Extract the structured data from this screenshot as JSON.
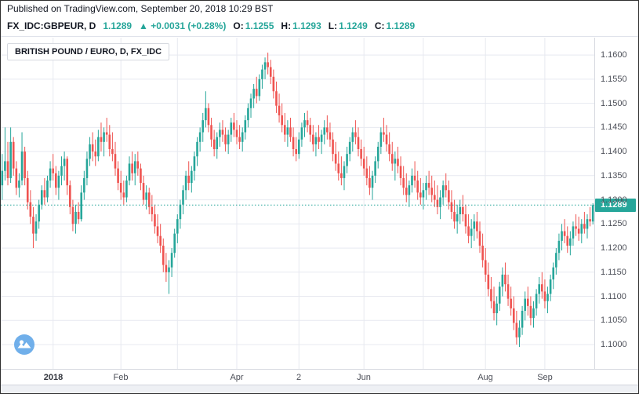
{
  "header": {
    "published_line": "Published on TradingView.com, September 20, 2018 10:29 BST",
    "symbol_line": {
      "symbol": "FX_IDC:GBPEUR, D",
      "last": "1.1289",
      "up_arrow": "▲",
      "change": "+0.0031 (+0.28%)",
      "o_label": "O:",
      "o": "1.1255",
      "h_label": "H:",
      "h": "1.1293",
      "l_label": "L:",
      "l": "1.1249",
      "c_label": "C:",
      "c": "1.1289"
    }
  },
  "legend": {
    "title": "BRITISH POUND / EURO, D, FX_IDC"
  },
  "price_scale": {
    "last_badge": "1.1289"
  },
  "colors": {
    "up": "#26a69a",
    "down": "#ef5350",
    "accent": "#26a69a",
    "grid": "#e7e9f0",
    "axis_text": "#4c4f58",
    "badge_bg": "#26a69a",
    "logo_blue": "#64a8e8"
  },
  "chart_data": {
    "type": "candlestick",
    "symbol": "FX_IDC:GBPEUR",
    "interval": "D",
    "title": "BRITISH POUND / EURO, D, FX_IDC",
    "ylim": [
      1.0948,
      1.1636
    ],
    "grid": true,
    "price_line": 1.1289,
    "y_ticks": [
      "1.1600",
      "1.1550",
      "1.1500",
      "1.1450",
      "1.1400",
      "1.1350",
      "1.1300",
      "1.1250",
      "1.1200",
      "1.1150",
      "1.1100",
      "1.1050",
      "1.1000"
    ],
    "x_ticks": [
      {
        "label": "2018",
        "index": 18
      },
      {
        "label": "Feb",
        "index": 42
      },
      {
        "label": "Apr",
        "index": 83
      },
      {
        "label": "2",
        "index": 105
      },
      {
        "label": "Jun",
        "index": 128
      },
      {
        "label": "Aug",
        "index": 171
      },
      {
        "label": "Sep",
        "index": 192
      }
    ],
    "month_gridline_indices": [
      18,
      42,
      62,
      83,
      105,
      128,
      149,
      171,
      192
    ],
    "candles": [
      [
        1.133,
        1.1395,
        1.13,
        1.136
      ],
      [
        1.136,
        1.145,
        1.134,
        1.138
      ],
      [
        1.138,
        1.142,
        1.133,
        1.1345
      ],
      [
        1.1345,
        1.145,
        1.1335,
        1.142
      ],
      [
        1.142,
        1.143,
        1.135,
        1.1365
      ],
      [
        1.1365,
        1.138,
        1.131,
        1.1325
      ],
      [
        1.1325,
        1.1355,
        1.1305,
        1.134
      ],
      [
        1.134,
        1.144,
        1.133,
        1.14
      ],
      [
        1.14,
        1.141,
        1.133,
        1.1345
      ],
      [
        1.1345,
        1.136,
        1.128,
        1.1295
      ],
      [
        1.1295,
        1.132,
        1.125,
        1.1265
      ],
      [
        1.1265,
        1.1285,
        1.12,
        1.123
      ],
      [
        1.123,
        1.127,
        1.1215,
        1.1255
      ],
      [
        1.1255,
        1.13,
        1.124,
        1.129
      ],
      [
        1.129,
        1.133,
        1.128,
        1.132
      ],
      [
        1.132,
        1.1345,
        1.129,
        1.1305
      ],
      [
        1.1305,
        1.135,
        1.1295,
        1.134
      ],
      [
        1.134,
        1.138,
        1.1325,
        1.1365
      ],
      [
        1.1365,
        1.1395,
        1.134,
        1.1355
      ],
      [
        1.1355,
        1.137,
        1.131,
        1.1325
      ],
      [
        1.1325,
        1.136,
        1.13,
        1.135
      ],
      [
        1.135,
        1.139,
        1.133,
        1.137
      ],
      [
        1.137,
        1.14,
        1.134,
        1.1385
      ],
      [
        1.1385,
        1.139,
        1.131,
        1.133
      ],
      [
        1.133,
        1.134,
        1.127,
        1.1285
      ],
      [
        1.1285,
        1.13,
        1.1235,
        1.125
      ],
      [
        1.125,
        1.129,
        1.123,
        1.1275
      ],
      [
        1.1275,
        1.1295,
        1.125,
        1.126
      ],
      [
        1.126,
        1.133,
        1.1255,
        1.1315
      ],
      [
        1.1315,
        1.136,
        1.13,
        1.1345
      ],
      [
        1.1345,
        1.14,
        1.133,
        1.1385
      ],
      [
        1.1385,
        1.143,
        1.137,
        1.1415
      ],
      [
        1.1415,
        1.144,
        1.138,
        1.14
      ],
      [
        1.14,
        1.1425,
        1.137,
        1.139
      ],
      [
        1.139,
        1.1445,
        1.138,
        1.143
      ],
      [
        1.143,
        1.146,
        1.14,
        1.142
      ],
      [
        1.142,
        1.145,
        1.139,
        1.144
      ],
      [
        1.144,
        1.147,
        1.142,
        1.1435
      ],
      [
        1.1435,
        1.1455,
        1.139,
        1.1405
      ],
      [
        1.1405,
        1.144,
        1.138,
        1.1395
      ],
      [
        1.1395,
        1.142,
        1.135,
        1.1365
      ],
      [
        1.1365,
        1.138,
        1.132,
        1.1335
      ],
      [
        1.1335,
        1.136,
        1.13,
        1.1315
      ],
      [
        1.1315,
        1.134,
        1.129,
        1.1305
      ],
      [
        1.1305,
        1.135,
        1.1295,
        1.134
      ],
      [
        1.134,
        1.139,
        1.133,
        1.1375
      ],
      [
        1.1375,
        1.14,
        1.134,
        1.1355
      ],
      [
        1.1355,
        1.1395,
        1.133,
        1.138
      ],
      [
        1.138,
        1.14,
        1.135,
        1.1365
      ],
      [
        1.1365,
        1.1375,
        1.132,
        1.1335
      ],
      [
        1.1335,
        1.135,
        1.129,
        1.13
      ],
      [
        1.13,
        1.133,
        1.128,
        1.1315
      ],
      [
        1.1315,
        1.1325,
        1.127,
        1.1285
      ],
      [
        1.1285,
        1.131,
        1.1255,
        1.127
      ],
      [
        1.127,
        1.129,
        1.123,
        1.1245
      ],
      [
        1.1245,
        1.127,
        1.121,
        1.1225
      ],
      [
        1.1225,
        1.125,
        1.119,
        1.1205
      ],
      [
        1.1205,
        1.122,
        1.115,
        1.1165
      ],
      [
        1.1165,
        1.119,
        1.113,
        1.115
      ],
      [
        1.115,
        1.1175,
        1.1105,
        1.116
      ],
      [
        1.116,
        1.12,
        1.114,
        1.119
      ],
      [
        1.119,
        1.124,
        1.118,
        1.123
      ],
      [
        1.123,
        1.127,
        1.121,
        1.126
      ],
      [
        1.126,
        1.13,
        1.124,
        1.129
      ],
      [
        1.129,
        1.133,
        1.127,
        1.132
      ],
      [
        1.132,
        1.136,
        1.13,
        1.135
      ],
      [
        1.135,
        1.138,
        1.132,
        1.1335
      ],
      [
        1.1335,
        1.137,
        1.1315,
        1.136
      ],
      [
        1.136,
        1.14,
        1.134,
        1.139
      ],
      [
        1.139,
        1.143,
        1.137,
        1.142
      ],
      [
        1.142,
        1.145,
        1.14,
        1.144
      ],
      [
        1.144,
        1.148,
        1.142,
        1.1465
      ],
      [
        1.1465,
        1.1525,
        1.145,
        1.149
      ],
      [
        1.149,
        1.15,
        1.144,
        1.1455
      ],
      [
        1.1455,
        1.147,
        1.141,
        1.1425
      ],
      [
        1.1425,
        1.1445,
        1.139,
        1.1405
      ],
      [
        1.1405,
        1.144,
        1.1385,
        1.143
      ],
      [
        1.143,
        1.146,
        1.141,
        1.1445
      ],
      [
        1.1445,
        1.1465,
        1.142,
        1.1435
      ],
      [
        1.1435,
        1.145,
        1.14,
        1.1415
      ],
      [
        1.1415,
        1.1445,
        1.1395,
        1.1435
      ],
      [
        1.1435,
        1.147,
        1.142,
        1.146
      ],
      [
        1.146,
        1.148,
        1.143,
        1.1445
      ],
      [
        1.1445,
        1.1465,
        1.1415,
        1.143
      ],
      [
        1.143,
        1.1455,
        1.1405,
        1.142
      ],
      [
        1.142,
        1.145,
        1.14,
        1.144
      ],
      [
        1.144,
        1.1475,
        1.1425,
        1.1465
      ],
      [
        1.1465,
        1.15,
        1.145,
        1.149
      ],
      [
        1.149,
        1.152,
        1.147,
        1.151
      ],
      [
        1.151,
        1.154,
        1.149,
        1.153
      ],
      [
        1.153,
        1.1555,
        1.15,
        1.1515
      ],
      [
        1.1515,
        1.156,
        1.1505,
        1.155
      ],
      [
        1.155,
        1.158,
        1.153,
        1.157
      ],
      [
        1.157,
        1.1595,
        1.155,
        1.1585
      ],
      [
        1.1585,
        1.1605,
        1.156,
        1.1575
      ],
      [
        1.1575,
        1.159,
        1.154,
        1.1555
      ],
      [
        1.1555,
        1.157,
        1.151,
        1.1525
      ],
      [
        1.1525,
        1.1545,
        1.148,
        1.1495
      ],
      [
        1.1495,
        1.152,
        1.146,
        1.1475
      ],
      [
        1.1475,
        1.15,
        1.144,
        1.1455
      ],
      [
        1.1455,
        1.148,
        1.142,
        1.1435
      ],
      [
        1.1435,
        1.1465,
        1.141,
        1.145
      ],
      [
        1.145,
        1.147,
        1.142,
        1.143
      ],
      [
        1.143,
        1.145,
        1.139,
        1.1405
      ],
      [
        1.1405,
        1.143,
        1.138,
        1.1395
      ],
      [
        1.1395,
        1.144,
        1.1385,
        1.1425
      ],
      [
        1.1425,
        1.146,
        1.141,
        1.145
      ],
      [
        1.145,
        1.148,
        1.143,
        1.1465
      ],
      [
        1.1465,
        1.1485,
        1.144,
        1.1455
      ],
      [
        1.1455,
        1.147,
        1.142,
        1.1435
      ],
      [
        1.1435,
        1.1455,
        1.14,
        1.1415
      ],
      [
        1.1415,
        1.144,
        1.139,
        1.143
      ],
      [
        1.143,
        1.1455,
        1.1405,
        1.142
      ],
      [
        1.142,
        1.1445,
        1.1395,
        1.1435
      ],
      [
        1.1435,
        1.1465,
        1.1415,
        1.145
      ],
      [
        1.145,
        1.1475,
        1.1425,
        1.144
      ],
      [
        1.144,
        1.146,
        1.141,
        1.1425
      ],
      [
        1.1425,
        1.144,
        1.138,
        1.1395
      ],
      [
        1.1395,
        1.142,
        1.136,
        1.1375
      ],
      [
        1.1375,
        1.14,
        1.134,
        1.1355
      ],
      [
        1.1355,
        1.139,
        1.133,
        1.1345
      ],
      [
        1.1345,
        1.138,
        1.132,
        1.137
      ],
      [
        1.137,
        1.141,
        1.1355,
        1.1395
      ],
      [
        1.1395,
        1.143,
        1.138,
        1.142
      ],
      [
        1.142,
        1.145,
        1.14,
        1.144
      ],
      [
        1.144,
        1.1465,
        1.1415,
        1.143
      ],
      [
        1.143,
        1.145,
        1.139,
        1.1405
      ],
      [
        1.1405,
        1.1425,
        1.137,
        1.1385
      ],
      [
        1.1385,
        1.141,
        1.135,
        1.1365
      ],
      [
        1.1365,
        1.139,
        1.133,
        1.1345
      ],
      [
        1.1345,
        1.137,
        1.131,
        1.1325
      ],
      [
        1.1325,
        1.136,
        1.13,
        1.135
      ],
      [
        1.135,
        1.139,
        1.1335,
        1.138
      ],
      [
        1.138,
        1.142,
        1.1365,
        1.141
      ],
      [
        1.141,
        1.145,
        1.1395,
        1.144
      ],
      [
        1.144,
        1.147,
        1.142,
        1.1435
      ],
      [
        1.1435,
        1.1455,
        1.14,
        1.1415
      ],
      [
        1.1415,
        1.144,
        1.138,
        1.1395
      ],
      [
        1.1395,
        1.142,
        1.136,
        1.1375
      ],
      [
        1.1375,
        1.14,
        1.134,
        1.1385
      ],
      [
        1.1385,
        1.141,
        1.1355,
        1.137
      ],
      [
        1.137,
        1.139,
        1.133,
        1.1345
      ],
      [
        1.1345,
        1.137,
        1.131,
        1.1325
      ],
      [
        1.1325,
        1.1355,
        1.1295,
        1.131
      ],
      [
        1.131,
        1.134,
        1.1285,
        1.133
      ],
      [
        1.133,
        1.1365,
        1.1315,
        1.135
      ],
      [
        1.135,
        1.138,
        1.1325,
        1.134
      ],
      [
        1.134,
        1.136,
        1.13,
        1.1315
      ],
      [
        1.1315,
        1.1345,
        1.129,
        1.1305
      ],
      [
        1.1305,
        1.1335,
        1.128,
        1.132
      ],
      [
        1.132,
        1.135,
        1.13,
        1.1335
      ],
      [
        1.1335,
        1.136,
        1.131,
        1.1325
      ],
      [
        1.1325,
        1.135,
        1.1295,
        1.131
      ],
      [
        1.131,
        1.134,
        1.1285,
        1.13
      ],
      [
        1.13,
        1.133,
        1.127,
        1.1285
      ],
      [
        1.1285,
        1.132,
        1.126,
        1.1305
      ],
      [
        1.1305,
        1.134,
        1.129,
        1.133
      ],
      [
        1.133,
        1.1355,
        1.1305,
        1.132
      ],
      [
        1.132,
        1.134,
        1.128,
        1.1295
      ],
      [
        1.1295,
        1.132,
        1.126,
        1.1275
      ],
      [
        1.1275,
        1.13,
        1.124,
        1.1255
      ],
      [
        1.1255,
        1.129,
        1.123,
        1.127
      ],
      [
        1.127,
        1.13,
        1.125,
        1.1285
      ],
      [
        1.1285,
        1.131,
        1.1255,
        1.127
      ],
      [
        1.127,
        1.129,
        1.123,
        1.1245
      ],
      [
        1.1245,
        1.127,
        1.121,
        1.1225
      ],
      [
        1.1225,
        1.126,
        1.12,
        1.124
      ],
      [
        1.124,
        1.127,
        1.1215,
        1.1255
      ],
      [
        1.1255,
        1.1275,
        1.122,
        1.1235
      ],
      [
        1.1235,
        1.1255,
        1.119,
        1.1205
      ],
      [
        1.1205,
        1.123,
        1.116,
        1.1175
      ],
      [
        1.1175,
        1.12,
        1.113,
        1.1145
      ],
      [
        1.1145,
        1.117,
        1.11,
        1.1115
      ],
      [
        1.1115,
        1.114,
        1.1075,
        1.109
      ],
      [
        1.109,
        1.112,
        1.105,
        1.1065
      ],
      [
        1.1065,
        1.11,
        1.104,
        1.1085
      ],
      [
        1.1085,
        1.113,
        1.107,
        1.112
      ],
      [
        1.112,
        1.116,
        1.11,
        1.1145
      ],
      [
        1.1145,
        1.117,
        1.111,
        1.1125
      ],
      [
        1.1125,
        1.1145,
        1.108,
        1.1095
      ],
      [
        1.1095,
        1.112,
        1.106,
        1.1075
      ],
      [
        1.1075,
        1.11,
        1.103,
        1.1045
      ],
      [
        1.1045,
        1.107,
        1.1,
        1.1015
      ],
      [
        1.1015,
        1.105,
        1.0995,
        1.1035
      ],
      [
        1.1035,
        1.108,
        1.102,
        1.107
      ],
      [
        1.107,
        1.111,
        1.105,
        1.1095
      ],
      [
        1.1095,
        1.112,
        1.106,
        1.108
      ],
      [
        1.108,
        1.11,
        1.104,
        1.1055
      ],
      [
        1.1055,
        1.109,
        1.1035,
        1.1075
      ],
      [
        1.1075,
        1.1115,
        1.106,
        1.1105
      ],
      [
        1.1105,
        1.114,
        1.1085,
        1.1125
      ],
      [
        1.1125,
        1.115,
        1.1095,
        1.111
      ],
      [
        1.111,
        1.1135,
        1.1075,
        1.109
      ],
      [
        1.109,
        1.112,
        1.1065,
        1.1105
      ],
      [
        1.1105,
        1.1145,
        1.109,
        1.1135
      ],
      [
        1.1135,
        1.117,
        1.1115,
        1.116
      ],
      [
        1.116,
        1.12,
        1.1145,
        1.119
      ],
      [
        1.119,
        1.123,
        1.1175,
        1.1215
      ],
      [
        1.1215,
        1.125,
        1.1195,
        1.1235
      ],
      [
        1.1235,
        1.126,
        1.121,
        1.1225
      ],
      [
        1.1225,
        1.1245,
        1.119,
        1.1205
      ],
      [
        1.1205,
        1.1235,
        1.1185,
        1.122
      ],
      [
        1.122,
        1.1255,
        1.1205,
        1.1245
      ],
      [
        1.1245,
        1.127,
        1.1225,
        1.124
      ],
      [
        1.124,
        1.1265,
        1.1215,
        1.123
      ],
      [
        1.123,
        1.126,
        1.121,
        1.125
      ],
      [
        1.125,
        1.1275,
        1.123,
        1.124
      ],
      [
        1.124,
        1.127,
        1.122,
        1.126
      ],
      [
        1.126,
        1.1285,
        1.1245,
        1.1255
      ],
      [
        1.1255,
        1.1293,
        1.1249,
        1.1289
      ]
    ]
  }
}
